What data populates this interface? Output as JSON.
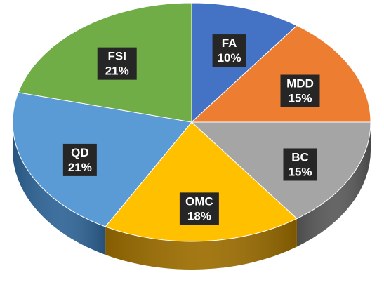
{
  "chart_data": {
    "type": "pie",
    "style": "3d",
    "title": "",
    "slices": [
      {
        "label": "FA",
        "value": 10,
        "display": "10%",
        "color": "#4472C4",
        "side_color": "#2F5597"
      },
      {
        "label": "MDD",
        "value": 15,
        "display": "15%",
        "color": "#ED7D31",
        "side_color": "#B85A17"
      },
      {
        "label": "BC",
        "value": 15,
        "display": "15%",
        "color": "#A5A5A5",
        "side_color": "#595959"
      },
      {
        "label": "OMC",
        "value": 18,
        "display": "18%",
        "color": "#FFC000",
        "side_color": "#9C6D00"
      },
      {
        "label": "QD",
        "value": 21,
        "display": "21%",
        "color": "#5B9BD5",
        "side_color": "#2E6496"
      },
      {
        "label": "FSI",
        "value": 21,
        "display": "21%",
        "color": "#70AD47",
        "side_color": "#4E7E30"
      }
    ]
  }
}
